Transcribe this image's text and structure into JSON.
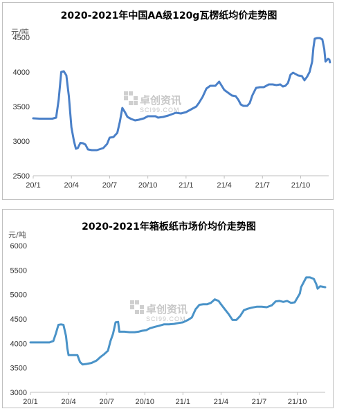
{
  "watermark": {
    "text": "卓创资讯",
    "sub": "SCI99.COM"
  },
  "chart_data": [
    {
      "type": "line",
      "title": "2020-2021年中国AA级120g瓦楞纸均价走势图",
      "ylabel": "元/吨",
      "ylim": [
        2500,
        4750
      ],
      "yticks": [
        2500,
        3000,
        3500,
        4000,
        4500
      ],
      "xticks": [
        "20/1",
        "20/4",
        "20/7",
        "20/10",
        "21/1",
        "21/4",
        "21/7",
        "21/10"
      ],
      "x_domain": [
        0,
        23.2
      ],
      "color": "#4a80c8",
      "series": [
        {
          "points": [
            [
              0.0,
              3330
            ],
            [
              0.5,
              3325
            ],
            [
              1.0,
              3325
            ],
            [
              1.5,
              3325
            ],
            [
              1.8,
              3340
            ],
            [
              2.0,
              3600
            ],
            [
              2.2,
              4000
            ],
            [
              2.4,
              4010
            ],
            [
              2.6,
              3950
            ],
            [
              2.8,
              3650
            ],
            [
              3.0,
              3200
            ],
            [
              3.2,
              3000
            ],
            [
              3.35,
              2890
            ],
            [
              3.5,
              2900
            ],
            [
              3.7,
              2975
            ],
            [
              3.9,
              2970
            ],
            [
              4.1,
              2950
            ],
            [
              4.3,
              2880
            ],
            [
              4.6,
              2870
            ],
            [
              5.0,
              2870
            ],
            [
              5.5,
              2900
            ],
            [
              5.8,
              2960
            ],
            [
              6.0,
              3050
            ],
            [
              6.3,
              3060
            ],
            [
              6.6,
              3120
            ],
            [
              6.8,
              3280
            ],
            [
              7.0,
              3480
            ],
            [
              7.2,
              3420
            ],
            [
              7.4,
              3350
            ],
            [
              7.7,
              3320
            ],
            [
              8.0,
              3300
            ],
            [
              8.3,
              3310
            ],
            [
              8.7,
              3330
            ],
            [
              9.0,
              3360
            ],
            [
              9.3,
              3360
            ],
            [
              9.6,
              3360
            ],
            [
              9.8,
              3340
            ],
            [
              10.2,
              3350
            ],
            [
              10.6,
              3370
            ],
            [
              10.9,
              3390
            ],
            [
              11.2,
              3410
            ],
            [
              11.6,
              3400
            ],
            [
              12.0,
              3420
            ],
            [
              12.5,
              3470
            ],
            [
              12.8,
              3500
            ],
            [
              13.0,
              3550
            ],
            [
              13.3,
              3640
            ],
            [
              13.6,
              3760
            ],
            [
              13.9,
              3800
            ],
            [
              14.3,
              3800
            ],
            [
              14.6,
              3860
            ],
            [
              14.8,
              3800
            ],
            [
              15.0,
              3740
            ],
            [
              15.3,
              3700
            ],
            [
              15.6,
              3660
            ],
            [
              15.9,
              3650
            ],
            [
              16.1,
              3600
            ],
            [
              16.3,
              3530
            ],
            [
              16.5,
              3510
            ],
            [
              16.8,
              3510
            ],
            [
              17.0,
              3550
            ],
            [
              17.2,
              3660
            ],
            [
              17.5,
              3770
            ],
            [
              17.8,
              3780
            ],
            [
              18.1,
              3780
            ],
            [
              18.5,
              3820
            ],
            [
              18.8,
              3820
            ],
            [
              19.1,
              3810
            ],
            [
              19.4,
              3820
            ],
            [
              19.6,
              3790
            ],
            [
              19.8,
              3800
            ],
            [
              20.0,
              3840
            ],
            [
              20.2,
              3960
            ],
            [
              20.4,
              3990
            ],
            [
              20.6,
              3970
            ],
            [
              20.8,
              3950
            ],
            [
              21.1,
              3940
            ],
            [
              21.3,
              3880
            ],
            [
              21.5,
              3930
            ],
            [
              21.7,
              4000
            ],
            [
              21.9,
              4150
            ],
            [
              22.0,
              4350
            ],
            [
              22.1,
              4480
            ],
            [
              22.3,
              4490
            ],
            [
              22.5,
              4490
            ],
            [
              22.7,
              4470
            ],
            [
              22.85,
              4330
            ],
            [
              22.95,
              4150
            ],
            [
              23.05,
              4170
            ],
            [
              23.15,
              4190
            ],
            [
              23.25,
              4180
            ],
            [
              23.3,
              4140
            ]
          ]
        }
      ]
    },
    {
      "type": "line",
      "title": "2020-2021年箱板纸市场价均价走势图",
      "ylabel": "元/吨",
      "ylim": [
        3000,
        6000
      ],
      "yticks": [
        3000,
        3500,
        4000,
        4500,
        5000,
        5500,
        6000
      ],
      "xticks": [
        "20/1",
        "20/4",
        "20/7",
        "20/10",
        "21/1",
        "21/4",
        "21/7",
        "21/10"
      ],
      "x_domain": [
        0,
        23.2
      ],
      "color": "#4a93c8",
      "series": [
        {
          "points": [
            [
              0.0,
              4020
            ],
            [
              0.5,
              4020
            ],
            [
              1.0,
              4020
            ],
            [
              1.5,
              4020
            ],
            [
              1.8,
              4050
            ],
            [
              2.0,
              4200
            ],
            [
              2.2,
              4380
            ],
            [
              2.4,
              4390
            ],
            [
              2.6,
              4380
            ],
            [
              2.8,
              4150
            ],
            [
              2.9,
              3900
            ],
            [
              3.0,
              3760
            ],
            [
              3.3,
              3760
            ],
            [
              3.7,
              3760
            ],
            [
              3.9,
              3620
            ],
            [
              4.1,
              3570
            ],
            [
              4.4,
              3580
            ],
            [
              4.8,
              3600
            ],
            [
              5.2,
              3650
            ],
            [
              5.5,
              3720
            ],
            [
              5.8,
              3780
            ],
            [
              6.1,
              3850
            ],
            [
              6.3,
              4050
            ],
            [
              6.5,
              4200
            ],
            [
              6.7,
              4430
            ],
            [
              6.9,
              4440
            ],
            [
              7.0,
              4240
            ],
            [
              7.4,
              4240
            ],
            [
              7.8,
              4230
            ],
            [
              8.2,
              4230
            ],
            [
              8.5,
              4240
            ],
            [
              8.8,
              4260
            ],
            [
              9.1,
              4270
            ],
            [
              9.4,
              4310
            ],
            [
              9.8,
              4340
            ],
            [
              10.1,
              4360
            ],
            [
              10.5,
              4390
            ],
            [
              10.9,
              4390
            ],
            [
              11.3,
              4400
            ],
            [
              11.7,
              4420
            ],
            [
              12.0,
              4430
            ],
            [
              12.4,
              4480
            ],
            [
              12.7,
              4530
            ],
            [
              13.0,
              4700
            ],
            [
              13.3,
              4790
            ],
            [
              13.6,
              4800
            ],
            [
              13.9,
              4800
            ],
            [
              14.2,
              4830
            ],
            [
              14.5,
              4900
            ],
            [
              14.8,
              4870
            ],
            [
              15.0,
              4800
            ],
            [
              15.3,
              4700
            ],
            [
              15.6,
              4600
            ],
            [
              15.9,
              4480
            ],
            [
              16.2,
              4480
            ],
            [
              16.5,
              4560
            ],
            [
              16.8,
              4680
            ],
            [
              17.1,
              4710
            ],
            [
              17.4,
              4730
            ],
            [
              17.8,
              4750
            ],
            [
              18.2,
              4750
            ],
            [
              18.6,
              4740
            ],
            [
              19.0,
              4780
            ],
            [
              19.3,
              4860
            ],
            [
              19.6,
              4870
            ],
            [
              19.9,
              4850
            ],
            [
              20.2,
              4870
            ],
            [
              20.5,
              4830
            ],
            [
              20.8,
              4840
            ],
            [
              21.0,
              4930
            ],
            [
              21.2,
              5020
            ],
            [
              21.3,
              5150
            ],
            [
              21.5,
              5250
            ],
            [
              21.7,
              5350
            ],
            [
              22.0,
              5350
            ],
            [
              22.3,
              5320
            ],
            [
              22.5,
              5210
            ],
            [
              22.6,
              5120
            ],
            [
              22.8,
              5170
            ],
            [
              23.0,
              5160
            ],
            [
              23.2,
              5150
            ]
          ]
        }
      ]
    }
  ]
}
